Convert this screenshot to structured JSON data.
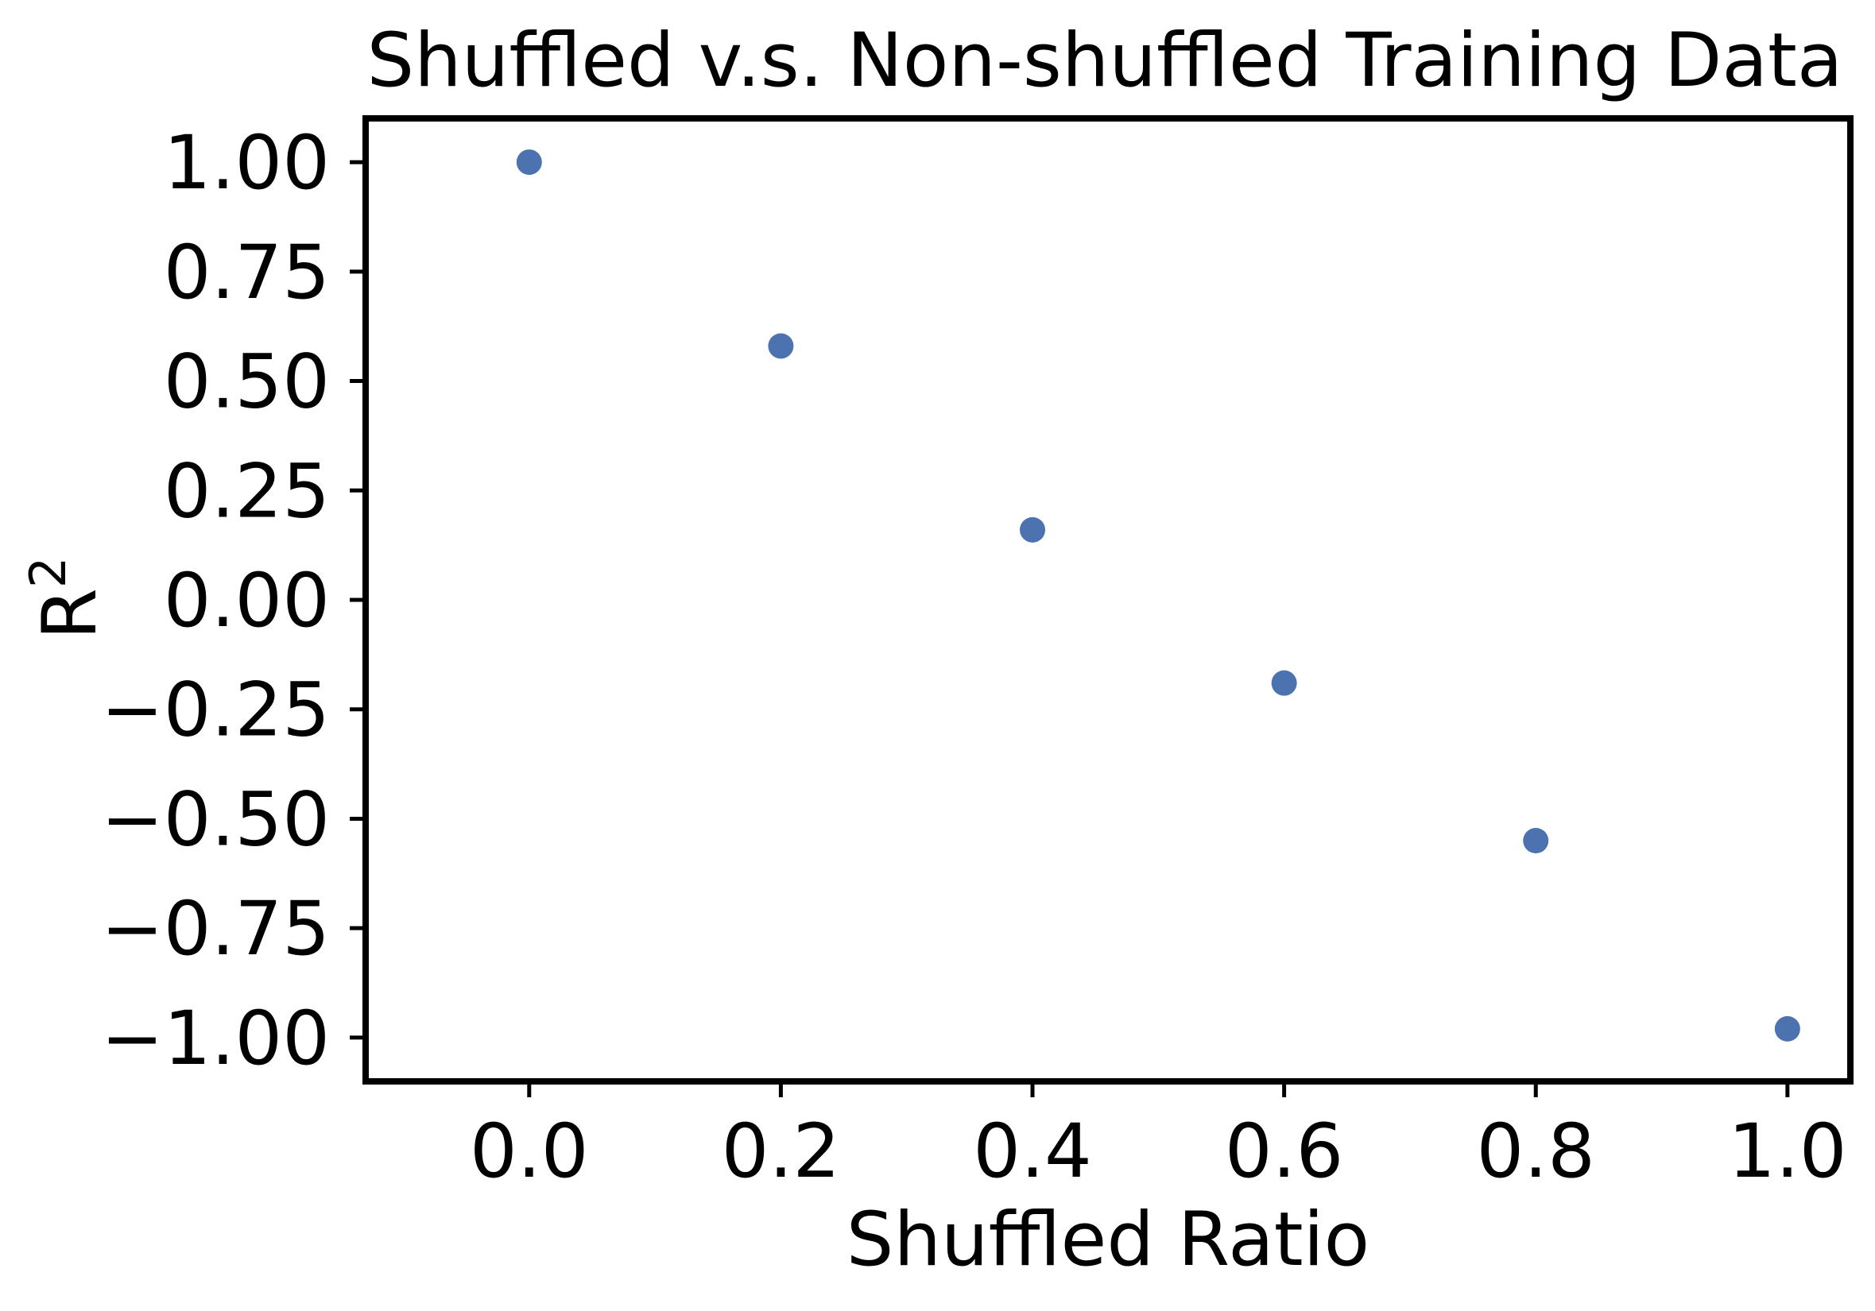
{
  "chart_data": {
    "type": "scatter",
    "title": "Shuffled v.s. Non-shuffled Training Data",
    "xlabel": "Shuffled Ratio",
    "ylabel": {
      "base": "R",
      "superscript": "2"
    },
    "xlim": [
      -0.13,
      1.05
    ],
    "ylim": [
      -1.1,
      1.1
    ],
    "x_ticks": [
      {
        "value": 0.0,
        "label": "0.0"
      },
      {
        "value": 0.2,
        "label": "0.2"
      },
      {
        "value": 0.4,
        "label": "0.4"
      },
      {
        "value": 0.6,
        "label": "0.6"
      },
      {
        "value": 0.8,
        "label": "0.8"
      },
      {
        "value": 1.0,
        "label": "1.0"
      }
    ],
    "y_ticks": [
      {
        "value": 1.0,
        "label": "1.00"
      },
      {
        "value": 0.75,
        "label": "0.75"
      },
      {
        "value": 0.5,
        "label": "0.50"
      },
      {
        "value": 0.25,
        "label": "0.25"
      },
      {
        "value": 0.0,
        "label": "0.00"
      },
      {
        "value": -0.25,
        "label": "−0.25"
      },
      {
        "value": -0.5,
        "label": "−0.50"
      },
      {
        "value": -0.75,
        "label": "−0.75"
      },
      {
        "value": -1.0,
        "label": "−1.00"
      }
    ],
    "series": [
      {
        "color": "#4c72b0",
        "points": [
          {
            "x": 0.0,
            "y": 1.0
          },
          {
            "x": 0.2,
            "y": 0.58
          },
          {
            "x": 0.4,
            "y": 0.16
          },
          {
            "x": 0.6,
            "y": -0.19
          },
          {
            "x": 0.8,
            "y": -0.55
          },
          {
            "x": 1.0,
            "y": -0.98
          }
        ]
      }
    ],
    "grid": false,
    "legend": "none"
  }
}
